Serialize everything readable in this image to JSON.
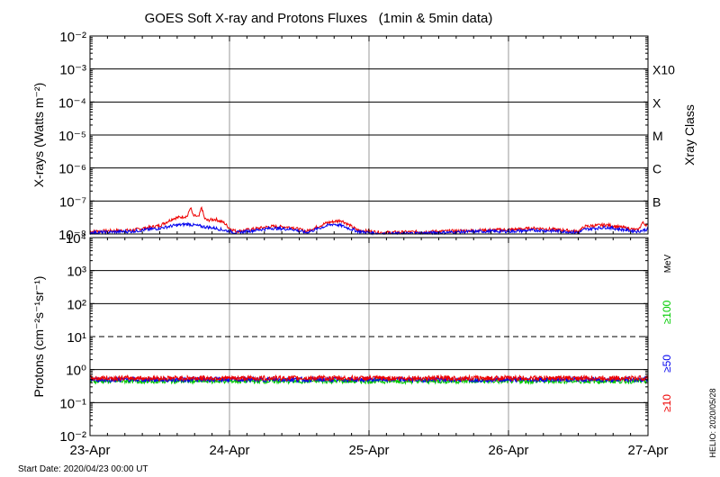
{
  "title": "GOES Soft X-ray and Protons Fluxes   (1min & 5min data)",
  "start_date": "Start Date: 2020/04/23 00:00 UT",
  "credit": "HELIO: 2020/05/28",
  "colors": {
    "red": "#ee0000",
    "blue": "#0000ee",
    "green": "#00cc00",
    "grid": "#999999",
    "axis": "#000000"
  },
  "chart_data": [
    {
      "type": "line",
      "name": "xray",
      "ylabel": "X-rays (Watts m⁻²)",
      "y_scale": "log",
      "ylim": [
        1e-08,
        0.01
      ],
      "ytick_labels": [
        "10⁻⁸",
        "10⁻⁷",
        "10⁻⁶",
        "10⁻⁵",
        "10⁻⁴",
        "10⁻³",
        "10⁻²"
      ],
      "xlim": [
        0,
        4
      ],
      "xtick_labels": [
        "23-Apr",
        "24-Apr",
        "25-Apr",
        "26-Apr",
        "27-Apr"
      ],
      "right_axis_label": "Xray Class",
      "class_labels": [
        {
          "label": "B",
          "level": 1e-07
        },
        {
          "label": "C",
          "level": 1e-06
        },
        {
          "label": "M",
          "level": 1e-05
        },
        {
          "label": "X",
          "level": 0.0001
        },
        {
          "label": "X10",
          "level": 0.001
        }
      ],
      "class_lines_at": [
        1e-07,
        1e-06,
        1e-05,
        0.0001,
        0.001
      ],
      "series": [
        {
          "color": "red",
          "x": [
            0,
            0.3,
            0.5,
            0.6,
            0.7,
            0.72,
            0.74,
            0.76,
            0.78,
            0.8,
            0.82,
            0.84,
            0.9,
            0.96,
            1.0,
            1.05,
            1.3,
            1.45,
            1.55,
            1.7,
            1.8,
            1.92,
            2.1,
            2.5,
            2.8,
            3.0,
            3.2,
            3.4,
            3.5,
            3.55,
            3.7,
            3.85,
            3.93,
            3.96,
            4.0
          ],
          "y": [
            1.2e-08,
            1.3e-08,
            1.8e-08,
            3e-08,
            3.5e-08,
            6.5e-08,
            3.5e-08,
            3.5e-08,
            3.2e-08,
            6.5e-08,
            3e-08,
            2.6e-08,
            2.8e-08,
            2.2e-08,
            1.5e-08,
            1.2e-08,
            1.7e-08,
            1.6e-08,
            1.2e-08,
            2.2e-08,
            2.6e-08,
            1.3e-08,
            1.1e-08,
            1.2e-08,
            1.3e-08,
            1.35e-08,
            1.5e-08,
            1.3e-08,
            1.2e-08,
            1.7e-08,
            1.9e-08,
            1.5e-08,
            1.3e-08,
            2.2e-08,
            1.8e-08
          ]
        },
        {
          "color": "blue",
          "x": [
            0,
            0.3,
            0.5,
            0.6,
            0.7,
            0.8,
            0.9,
            1.0,
            1.05,
            1.3,
            1.45,
            1.55,
            1.7,
            1.75,
            1.8,
            1.92,
            2.1,
            2.5,
            2.8,
            3.0,
            3.2,
            3.4,
            3.5,
            3.55,
            3.7,
            3.85,
            3.93,
            4.0
          ],
          "y": [
            1.1e-08,
            1.2e-08,
            1.5e-08,
            1.8e-08,
            2e-08,
            1.7e-08,
            1.5e-08,
            1.2e-08,
            1.1e-08,
            1.5e-08,
            1.4e-08,
            1.1e-08,
            1.8e-08,
            2e-08,
            1.8e-08,
            1.2e-08,
            1e-08,
            1.1e-08,
            1.2e-08,
            1.2e-08,
            1.3e-08,
            1.2e-08,
            1.1e-08,
            1.4e-08,
            1.6e-08,
            1.3e-08,
            1.2e-08,
            1.4e-08
          ]
        }
      ]
    },
    {
      "type": "line",
      "name": "protons",
      "ylabel": "Protons (cm⁻²s⁻¹sr⁻¹)",
      "y_scale": "log",
      "ylim": [
        0.01,
        10000
      ],
      "ytick_labels": [
        "10⁻²",
        "10⁻¹",
        "10⁰",
        "10¹",
        "10²",
        "10³",
        "10⁴"
      ],
      "xlim": [
        0,
        4
      ],
      "xtick_labels": [
        "23-Apr",
        "24-Apr",
        "25-Apr",
        "26-Apr",
        "27-Apr"
      ],
      "solid_lines_at": [
        0.1,
        1,
        100,
        1000
      ],
      "dashed_line_at": 10,
      "energy_unit": "MeV",
      "legend": [
        {
          "label": "≥10",
          "color": "red"
        },
        {
          "label": "≥50",
          "color": "blue"
        },
        {
          "label": "≥100",
          "color": "green"
        }
      ],
      "series": [
        {
          "name": "≥10",
          "color": "red",
          "x": [
            0,
            4
          ],
          "y": [
            0.55,
            0.55
          ]
        },
        {
          "name": "≥50",
          "color": "blue",
          "x": [
            0,
            4
          ],
          "y": [
            0.5,
            0.5
          ]
        },
        {
          "name": "≥100",
          "color": "green",
          "x": [
            0,
            4
          ],
          "y": [
            0.45,
            0.45
          ]
        }
      ]
    }
  ]
}
